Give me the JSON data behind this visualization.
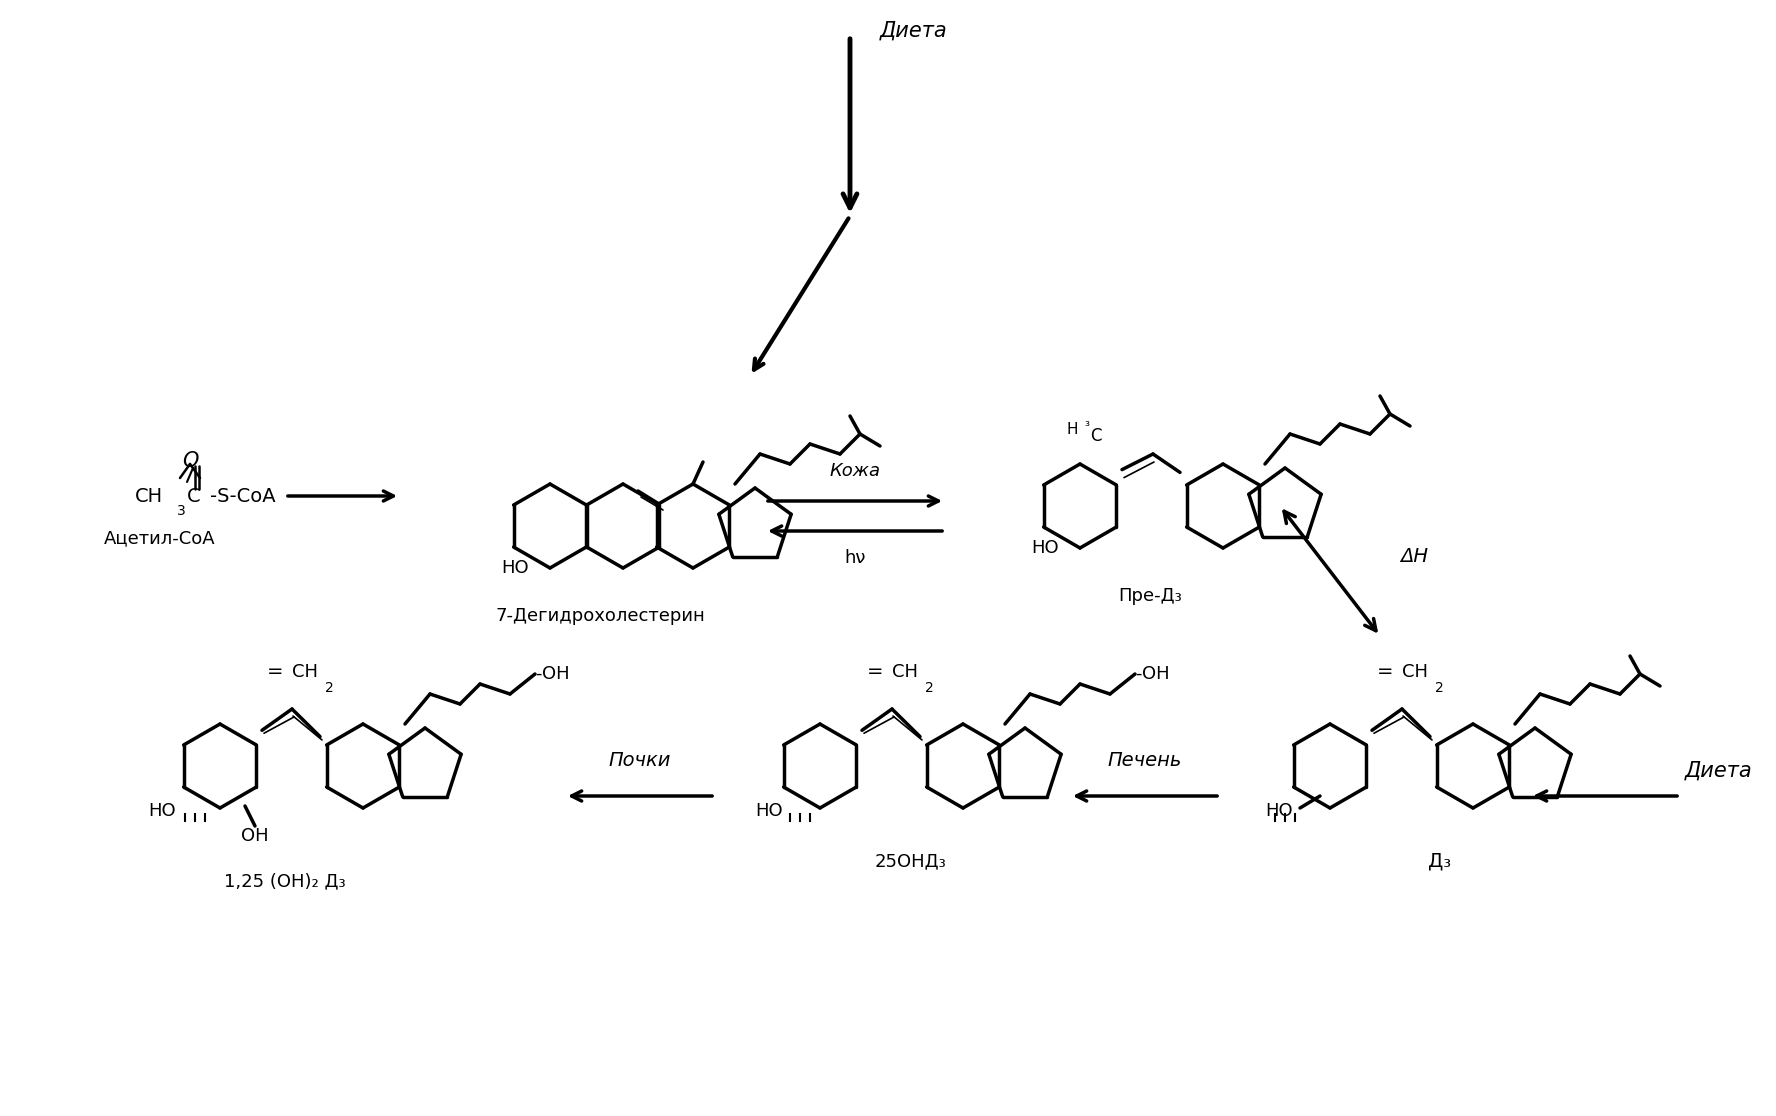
{
  "bg_color": "#ffffff",
  "title": "",
  "figsize": [
    17.76,
    11.16
  ],
  "dpi": 100,
  "labels": {
    "acetyl_coa": "Ацетил-СоА",
    "dehydrocholesterol": "7-Дегидрохолестерин",
    "pre_d3": "Пре-Д₃",
    "d3": "Д₃",
    "ohd3": "25ОНД₃",
    "cal": "1,25 (ОН)₂ Д₃",
    "diet_top": "Диета",
    "skin": "Кожа",
    "hv": "hν",
    "delta_h": "ΔН",
    "liver": "Печень",
    "kidney": "Почки",
    "diet_right": "Диета"
  }
}
